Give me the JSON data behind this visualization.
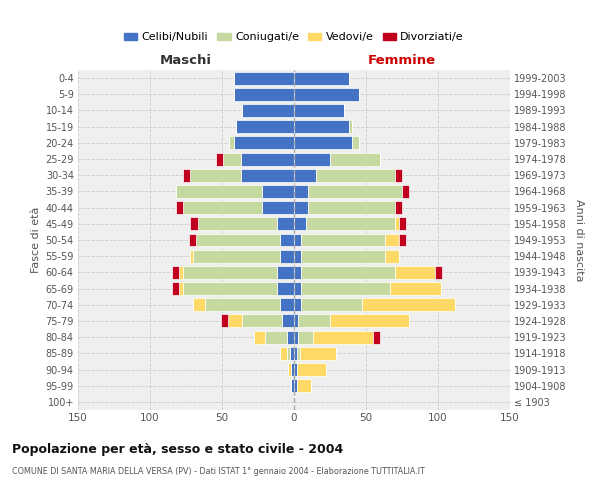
{
  "age_groups": [
    "100+",
    "95-99",
    "90-94",
    "85-89",
    "80-84",
    "75-79",
    "70-74",
    "65-69",
    "60-64",
    "55-59",
    "50-54",
    "45-49",
    "40-44",
    "35-39",
    "30-34",
    "25-29",
    "20-24",
    "15-19",
    "10-14",
    "5-9",
    "0-4"
  ],
  "birth_years": [
    "≤ 1903",
    "1904-1908",
    "1909-1913",
    "1914-1918",
    "1919-1923",
    "1924-1928",
    "1929-1933",
    "1934-1938",
    "1939-1943",
    "1944-1948",
    "1949-1953",
    "1954-1958",
    "1959-1963",
    "1964-1968",
    "1969-1973",
    "1974-1978",
    "1979-1983",
    "1984-1988",
    "1989-1993",
    "1994-1998",
    "1999-2003"
  ],
  "colors": {
    "celibi": "#4472c4",
    "coniugati": "#c5d9a0",
    "vedovi": "#ffd966",
    "divorziati": "#c0001c"
  },
  "maschi": {
    "celibi": [
      0,
      2,
      2,
      3,
      5,
      8,
      10,
      12,
      12,
      10,
      10,
      12,
      22,
      22,
      37,
      37,
      42,
      40,
      36,
      42,
      42
    ],
    "coniugati": [
      0,
      0,
      0,
      2,
      15,
      28,
      52,
      65,
      65,
      60,
      58,
      55,
      55,
      60,
      35,
      12,
      3,
      0,
      0,
      0,
      0
    ],
    "vedovi": [
      0,
      0,
      2,
      5,
      8,
      10,
      8,
      3,
      3,
      2,
      0,
      0,
      0,
      0,
      0,
      0,
      0,
      0,
      0,
      0,
      0
    ],
    "divorziati": [
      0,
      0,
      0,
      0,
      0,
      5,
      0,
      5,
      5,
      0,
      5,
      5,
      5,
      0,
      5,
      5,
      0,
      0,
      0,
      0,
      0
    ]
  },
  "femmine": {
    "celibi": [
      0,
      2,
      2,
      2,
      3,
      3,
      5,
      5,
      5,
      5,
      5,
      8,
      10,
      10,
      15,
      25,
      40,
      38,
      35,
      45,
      38
    ],
    "coniugati": [
      0,
      0,
      0,
      2,
      10,
      22,
      42,
      62,
      65,
      58,
      58,
      62,
      60,
      65,
      55,
      35,
      5,
      2,
      0,
      0,
      0
    ],
    "vedovi": [
      0,
      10,
      20,
      25,
      42,
      55,
      65,
      35,
      28,
      10,
      10,
      3,
      0,
      0,
      0,
      0,
      0,
      0,
      0,
      0,
      0
    ],
    "divorziati": [
      0,
      0,
      0,
      0,
      5,
      0,
      0,
      0,
      5,
      0,
      5,
      5,
      5,
      5,
      5,
      0,
      0,
      0,
      0,
      0,
      0
    ]
  },
  "title": "Popolazione per età, sesso e stato civile - 2004",
  "subtitle": "COMUNE DI SANTA MARIA DELLA VERSA (PV) - Dati ISTAT 1° gennaio 2004 - Elaborazione TUTTITALIA.IT",
  "xlabel_left": "Maschi",
  "xlabel_right": "Femmine",
  "ylabel_left": "Fasce di età",
  "ylabel_right": "Anni di nascita",
  "xlim": 150,
  "legend_labels": [
    "Celibi/Nubili",
    "Coniugati/e",
    "Vedovi/e",
    "Divorziati/e"
  ],
  "bg_color": "#ffffff",
  "plot_bg": "#efefef",
  "grid_color": "#cccccc"
}
